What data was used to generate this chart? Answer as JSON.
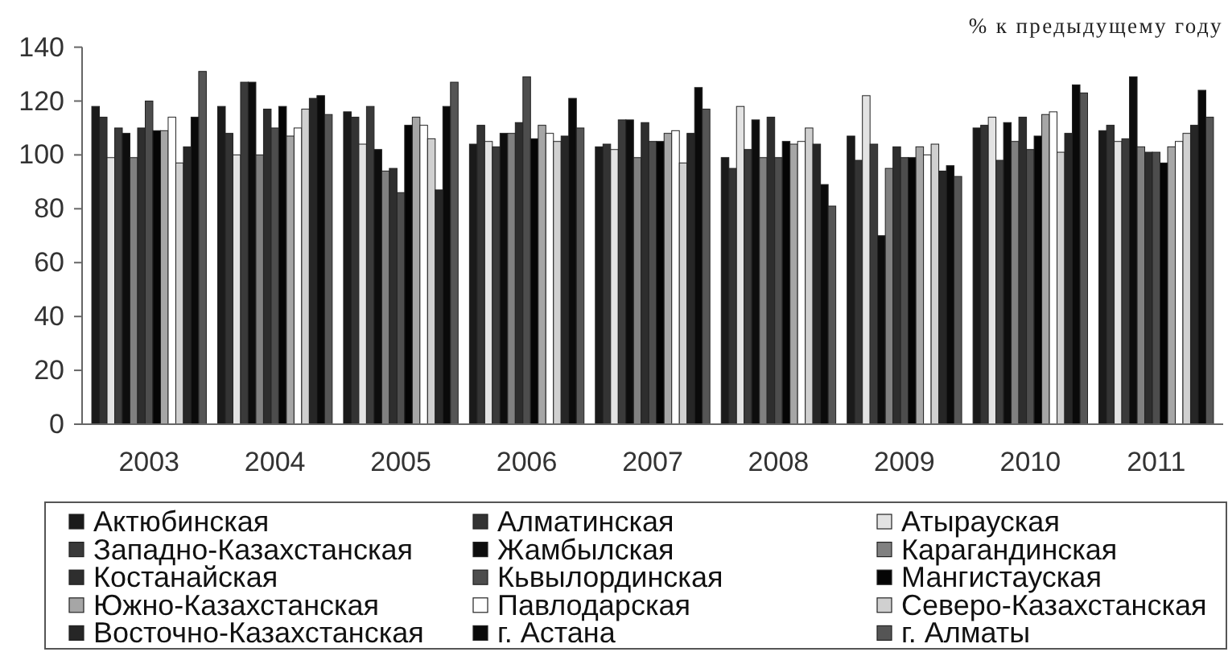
{
  "chart_data": {
    "type": "bar",
    "ylabel": "% к предыдущему году",
    "categories": [
      "2003",
      "2004",
      "2005",
      "2006",
      "2007",
      "2008",
      "2009",
      "2010",
      "2011"
    ],
    "series": [
      {
        "name": "Актюбинская",
        "color": "#1a1a1a",
        "values": [
          118,
          118,
          116,
          104,
          103,
          99,
          107,
          110,
          109
        ]
      },
      {
        "name": "Алматинская",
        "color": "#333333",
        "values": [
          114,
          108,
          114,
          111,
          104,
          95,
          98,
          111,
          111
        ]
      },
      {
        "name": "Атырауская",
        "color": "#e3e3e3",
        "values": [
          99,
          100,
          104,
          105,
          102,
          118,
          122,
          114,
          105
        ]
      },
      {
        "name": "Западно-Казахстанская",
        "color": "#3a3a3a",
        "values": [
          110,
          127,
          118,
          103,
          113,
          102,
          104,
          98,
          106
        ]
      },
      {
        "name": "Жамбылская",
        "color": "#0d0d0d",
        "values": [
          108,
          127,
          102,
          108,
          113,
          113,
          70,
          112,
          129
        ]
      },
      {
        "name": "Карагандинская",
        "color": "#808080",
        "values": [
          99,
          100,
          94,
          108,
          99,
          99,
          95,
          105,
          103
        ]
      },
      {
        "name": "Костанайская",
        "color": "#2e2e2e",
        "values": [
          110,
          117,
          95,
          112,
          112,
          114,
          103,
          114,
          101
        ]
      },
      {
        "name": "Кьвылординская",
        "color": "#4d4d4d",
        "values": [
          120,
          110,
          86,
          129,
          105,
          99,
          99,
          102,
          101
        ]
      },
      {
        "name": "Мангистауская",
        "color": "#050505",
        "values": [
          109,
          118,
          111,
          106,
          105,
          105,
          99,
          107,
          97
        ]
      },
      {
        "name": "Южно-Казахстанская",
        "color": "#a6a6a6",
        "values": [
          109,
          107,
          114,
          111,
          108,
          104,
          103,
          115,
          103
        ]
      },
      {
        "name": "Павлодарская",
        "color": "#ffffff",
        "values": [
          114,
          110,
          111,
          108,
          109,
          105,
          100,
          116,
          105
        ]
      },
      {
        "name": "Северо-Казахстанская",
        "color": "#d0d0d0",
        "values": [
          97,
          117,
          106,
          105,
          97,
          110,
          104,
          101,
          108
        ]
      },
      {
        "name": "Восточно-Казахстанская",
        "color": "#262626",
        "values": [
          103,
          121,
          87,
          107,
          108,
          104,
          94,
          108,
          111
        ]
      },
      {
        "name": "г. Астана",
        "color": "#0a0a0a",
        "values": [
          114,
          122,
          118,
          121,
          125,
          89,
          96,
          126,
          124
        ]
      },
      {
        "name": "г. Алматы",
        "color": "#555555",
        "values": [
          131,
          115,
          127,
          110,
          117,
          81,
          92,
          123,
          114
        ]
      }
    ],
    "ylim": [
      0,
      140
    ],
    "yticks": [
      0,
      20,
      40,
      60,
      80,
      100,
      120,
      140
    ],
    "legend": "bottom"
  }
}
